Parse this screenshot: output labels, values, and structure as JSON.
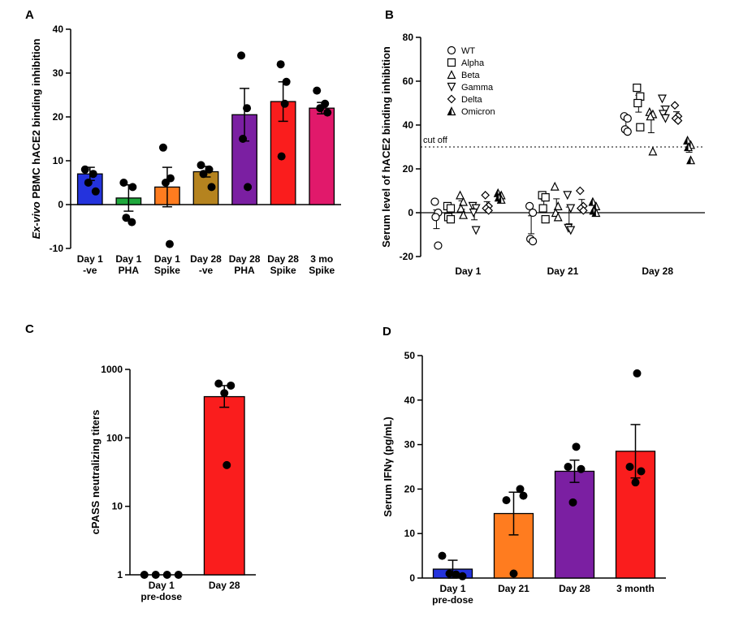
{
  "figure": {
    "background": "#ffffff",
    "panel_labels": [
      "A",
      "B",
      "C",
      "D"
    ]
  },
  "chart_data": [
    {
      "panel": "A",
      "type": "bar",
      "title": "",
      "xlabel": "",
      "ylabel": "Ex-vivo PBMC hACE2 binding inhibition",
      "ylabel_italic_prefix": "Ex-vivo",
      "ylim": [
        -10,
        40
      ],
      "ytick_step": 10,
      "grid": false,
      "categories": [
        "Day 1\n-ve",
        "Day 1\nPHA",
        "Day 1\nSpike",
        "Day 28\n-ve",
        "Day 28\nPHA",
        "Day 28\nSpike",
        "3 mo\nSpike"
      ],
      "values": [
        7,
        1.5,
        4,
        7.5,
        20.5,
        23.5,
        22
      ],
      "errors": [
        1.5,
        3,
        4.5,
        1.2,
        6,
        4.5,
        1.3
      ],
      "bar_colors": [
        "#2433dd",
        "#1fa83c",
        "#ff7c1f",
        "#b5831f",
        "#7b1fa2",
        "#fa1d1d",
        "#e1196b"
      ],
      "points": [
        [
          8,
          7,
          5,
          3
        ],
        [
          5,
          4,
          -3,
          -4
        ],
        [
          13,
          6,
          5,
          -9
        ],
        [
          9,
          8,
          7,
          4
        ],
        [
          34,
          22,
          15,
          4
        ],
        [
          32,
          28,
          23,
          11
        ],
        [
          26,
          23,
          22,
          21
        ]
      ],
      "point_offsets": [
        [
          -6,
          4,
          -2,
          7
        ],
        [
          -6,
          5,
          -3,
          4
        ],
        [
          -5,
          4,
          -2,
          3
        ],
        [
          -6,
          4,
          -3,
          7
        ],
        [
          -4,
          3,
          -2,
          4
        ],
        [
          -3,
          4,
          2,
          -2
        ],
        [
          -6,
          4,
          -2,
          7
        ]
      ]
    },
    {
      "panel": "B",
      "type": "scatter",
      "title": "",
      "xlabel": "",
      "ylabel": "Serum level of hACE2 binding inhibition",
      "ylim": [
        -20,
        80
      ],
      "ytick_step": 20,
      "grid": false,
      "legend_position": "top-left",
      "cutoff": {
        "value": 30,
        "label": "cut off"
      },
      "groups": [
        "Day 1",
        "Day 21",
        "Day 28"
      ],
      "series": [
        {
          "name": "WT",
          "marker": "circle",
          "values": [
            [
              5,
              0,
              -2,
              -15
            ],
            [
              3,
              0,
              -12,
              -13
            ],
            [
              44,
              43,
              38,
              37
            ]
          ]
        },
        {
          "name": "Alpha",
          "marker": "square",
          "values": [
            [
              3,
              2,
              -2,
              -3
            ],
            [
              8,
              7,
              2,
              -3
            ],
            [
              57,
              53,
              50,
              39
            ]
          ]
        },
        {
          "name": "Beta",
          "marker": "triangle-up",
          "values": [
            [
              8,
              5,
              2,
              -1
            ],
            [
              12,
              3,
              0,
              -2
            ],
            [
              46,
              45,
              44,
              28
            ]
          ]
        },
        {
          "name": "Gamma",
          "marker": "triangle-down",
          "values": [
            [
              3,
              2,
              0,
              -8
            ],
            [
              8,
              2,
              -7,
              -8
            ],
            [
              52,
              47,
              45,
              43
            ]
          ]
        },
        {
          "name": "Delta",
          "marker": "diamond",
          "values": [
            [
              8,
              3,
              2,
              1
            ],
            [
              10,
              3,
              2,
              1
            ],
            [
              49,
              44,
              43,
              42
            ]
          ]
        },
        {
          "name": "Omicron",
          "marker": "half-triangle",
          "values": [
            [
              9,
              8,
              7,
              6
            ],
            [
              5,
              3,
              1,
              0
            ],
            [
              33,
              31,
              30,
              24
            ]
          ]
        }
      ]
    },
    {
      "panel": "C",
      "type": "bar-log",
      "title": "",
      "xlabel": "",
      "ylabel": "cPASS neutralizing titers",
      "ylim": [
        1,
        1000
      ],
      "yticks": [
        1,
        10,
        100,
        1000
      ],
      "grid": false,
      "categories": [
        "Day 1\npre-dose",
        "Day 28"
      ],
      "values": [
        1,
        400
      ],
      "errors_hi": [
        0,
        180
      ],
      "errors_lo": [
        0,
        120
      ],
      "bar_colors": [
        "#000000",
        "#fa1d1d"
      ],
      "points": [
        [
          1,
          1,
          1,
          1
        ],
        [
          620,
          580,
          450,
          40
        ]
      ],
      "point_offsets": [
        [
          -21,
          -7,
          7,
          21
        ],
        [
          -7,
          8,
          0,
          3
        ]
      ]
    },
    {
      "panel": "D",
      "type": "bar",
      "title": "",
      "xlabel": "",
      "ylabel": "Serum IFNγ (pg/mL)",
      "ylim": [
        0,
        50
      ],
      "ytick_step": 10,
      "grid": false,
      "categories": [
        "Day 1\npre-dose",
        "Day 21",
        "Day 28",
        "3 month"
      ],
      "values": [
        2,
        14.5,
        24,
        28.5
      ],
      "errors": [
        2,
        4.8,
        2.5,
        6
      ],
      "bar_colors": [
        "#2433dd",
        "#ff7c1f",
        "#7b1fa2",
        "#fa1d1d"
      ],
      "points": [
        [
          5,
          1,
          0.8,
          0.4
        ],
        [
          20,
          18.5,
          17.5,
          1
        ],
        [
          29.5,
          25,
          24.5,
          17
        ],
        [
          46,
          25,
          24,
          21.5
        ]
      ],
      "point_offsets": [
        [
          -13,
          -4,
          4,
          12
        ],
        [
          8,
          12,
          -9,
          0
        ],
        [
          2,
          -8,
          8,
          -2
        ],
        [
          2,
          -7,
          7,
          0
        ]
      ]
    }
  ]
}
